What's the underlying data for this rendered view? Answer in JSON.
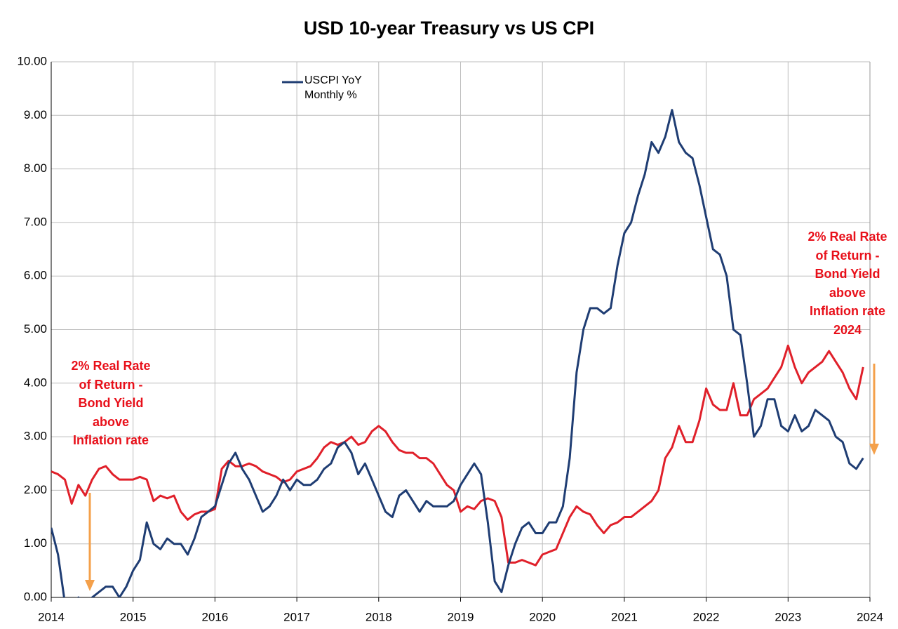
{
  "chart_data": {
    "type": "line",
    "title": "USD 10-year Treasury vs US CPI",
    "x": [
      2014,
      2014.083,
      2014.167,
      2014.25,
      2014.333,
      2014.417,
      2014.5,
      2014.583,
      2014.667,
      2014.75,
      2014.833,
      2014.917,
      2015,
      2015.083,
      2015.167,
      2015.25,
      2015.333,
      2015.417,
      2015.5,
      2015.583,
      2015.667,
      2015.75,
      2015.833,
      2015.917,
      2016,
      2016.083,
      2016.167,
      2016.25,
      2016.333,
      2016.417,
      2016.5,
      2016.583,
      2016.667,
      2016.75,
      2016.833,
      2016.917,
      2017,
      2017.083,
      2017.167,
      2017.25,
      2017.333,
      2017.417,
      2017.5,
      2017.583,
      2017.667,
      2017.75,
      2017.833,
      2017.917,
      2018,
      2018.083,
      2018.167,
      2018.25,
      2018.333,
      2018.417,
      2018.5,
      2018.583,
      2018.667,
      2018.75,
      2018.833,
      2018.917,
      2019,
      2019.083,
      2019.167,
      2019.25,
      2019.333,
      2019.417,
      2019.5,
      2019.583,
      2019.667,
      2019.75,
      2019.833,
      2019.917,
      2020,
      2020.083,
      2020.167,
      2020.25,
      2020.333,
      2020.417,
      2020.5,
      2020.583,
      2020.667,
      2020.75,
      2020.833,
      2020.917,
      2021,
      2021.083,
      2021.167,
      2021.25,
      2021.333,
      2021.417,
      2021.5,
      2021.583,
      2021.667,
      2021.75,
      2021.833,
      2021.917,
      2022,
      2022.083,
      2022.167,
      2022.25,
      2022.333,
      2022.417,
      2022.5,
      2022.583,
      2022.667,
      2022.75,
      2022.833,
      2022.917,
      2023,
      2023.083,
      2023.167,
      2023.25,
      2023.333,
      2023.417,
      2023.5,
      2023.583,
      2023.667,
      2023.75,
      2023.833,
      2023.917
    ],
    "series": [
      {
        "name": "USCPI YoY Monthly %",
        "color": "#1f3d73",
        "values": [
          1.3,
          0.8,
          -0.1,
          -0.1,
          0.0,
          -0.1,
          0.0,
          0.1,
          0.2,
          0.2,
          0.0,
          0.2,
          0.5,
          0.7,
          1.4,
          1.0,
          0.9,
          1.1,
          1.0,
          1.0,
          0.8,
          1.1,
          1.5,
          1.6,
          1.7,
          2.1,
          2.5,
          2.7,
          2.4,
          2.2,
          1.9,
          1.6,
          1.7,
          1.9,
          2.2,
          2.0,
          2.2,
          2.1,
          2.1,
          2.2,
          2.4,
          2.5,
          2.8,
          2.9,
          2.7,
          2.3,
          2.5,
          2.2,
          1.9,
          1.6,
          1.5,
          1.9,
          2.0,
          1.8,
          1.6,
          1.8,
          1.7,
          1.7,
          1.7,
          1.8,
          2.1,
          2.3,
          2.5,
          2.3,
          1.4,
          0.3,
          0.1,
          0.6,
          1.0,
          1.3,
          1.4,
          1.2,
          1.2,
          1.4,
          1.4,
          1.7,
          2.6,
          4.2,
          5.0,
          5.4,
          5.4,
          5.3,
          5.4,
          6.2,
          6.8,
          7.0,
          7.5,
          7.9,
          8.5,
          8.3,
          8.6,
          9.1,
          8.5,
          8.3,
          8.2,
          7.7,
          7.1,
          6.5,
          6.4,
          6.0,
          5.0,
          4.9,
          4.0,
          3.0,
          3.2,
          3.7,
          3.7,
          3.2,
          3.1,
          3.4,
          3.1,
          3.2,
          3.5,
          3.4,
          3.3,
          3.0,
          2.9,
          2.5,
          2.4,
          2.6
        ]
      },
      {
        "color": "#e0202a",
        "values": [
          2.35,
          2.3,
          2.2,
          1.75,
          2.1,
          1.9,
          2.2,
          2.4,
          2.45,
          2.3,
          2.2,
          2.2,
          2.2,
          2.25,
          2.2,
          1.8,
          1.9,
          1.85,
          1.9,
          1.6,
          1.45,
          1.55,
          1.6,
          1.6,
          1.65,
          2.4,
          2.55,
          2.45,
          2.45,
          2.5,
          2.45,
          2.35,
          2.3,
          2.25,
          2.15,
          2.2,
          2.35,
          2.4,
          2.45,
          2.6,
          2.8,
          2.9,
          2.85,
          2.9,
          3.0,
          2.85,
          2.9,
          3.1,
          3.2,
          3.1,
          2.9,
          2.75,
          2.7,
          2.7,
          2.6,
          2.6,
          2.5,
          2.3,
          2.1,
          2.0,
          1.6,
          1.7,
          1.65,
          1.8,
          1.85,
          1.8,
          1.5,
          0.65,
          0.65,
          0.7,
          0.65,
          0.6,
          0.8,
          0.85,
          0.9,
          1.2,
          1.5,
          1.7,
          1.6,
          1.55,
          1.35,
          1.2,
          1.35,
          1.4,
          1.5,
          1.5,
          1.6,
          1.7,
          1.8,
          2.0,
          2.6,
          2.8,
          3.2,
          2.9,
          2.9,
          3.3,
          3.9,
          3.6,
          3.5,
          3.5,
          4.0,
          3.4,
          3.4,
          3.7,
          3.8,
          3.9,
          4.1,
          4.3,
          4.7,
          4.3,
          4.0,
          4.2,
          4.3,
          4.4,
          4.6,
          4.4,
          4.2,
          3.9,
          3.7,
          4.3
        ]
      }
    ],
    "xlim": [
      2014,
      2024
    ],
    "xticks": [
      2014,
      2015,
      2016,
      2017,
      2018,
      2019,
      2020,
      2021,
      2022,
      2023,
      2024
    ],
    "ylim": [
      0,
      10
    ],
    "yticks": [
      {
        "value": 0,
        "label": "0.00"
      },
      {
        "value": 1,
        "label": "1.00"
      },
      {
        "value": 2,
        "label": "2.00"
      },
      {
        "value": 3,
        "label": "3.00"
      },
      {
        "value": 4,
        "label": "4.00"
      },
      {
        "value": 5,
        "label": "5.00"
      },
      {
        "value": 6,
        "label": "6.00"
      },
      {
        "value": 7,
        "label": "7.00"
      },
      {
        "value": 8,
        "label": "8.00"
      },
      {
        "value": 9,
        "label": "9.00"
      },
      {
        "value": 10,
        "label": "10.00"
      }
    ],
    "grid": true,
    "annotations": [
      {
        "lines": [
          "2% Real Rate",
          "of Return -",
          "Bond Yield",
          "above",
          "Inflation rate"
        ]
      },
      {
        "lines": [
          "2% Real Rate",
          "of Return -",
          "Bond Yield",
          "above",
          "Inflation rate",
          "2024"
        ]
      }
    ]
  }
}
